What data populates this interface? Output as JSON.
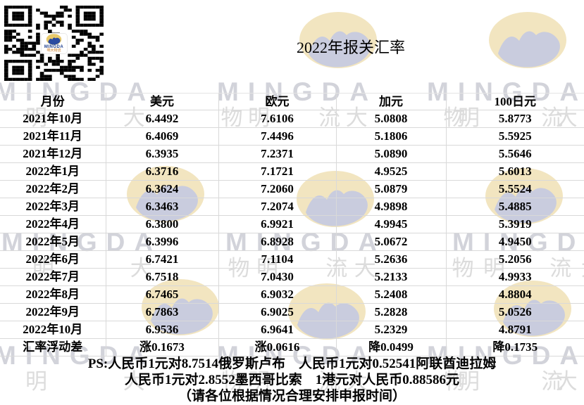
{
  "title": "2022年报关汇率",
  "watermark": {
    "brand": "MINGDA",
    "brand_cn": "明 大 物 流"
  },
  "qr": {
    "brand": "MINGDA",
    "brand_cn": "明大物流"
  },
  "table": {
    "columns": [
      "月份",
      "美元",
      "欧元",
      "加元",
      "100日元"
    ],
    "rows": [
      [
        "2021年10月",
        "6.4492",
        "7.6106",
        "5.0808",
        "5.8773"
      ],
      [
        "2021年11月",
        "6.4069",
        "7.4496",
        "5.1806",
        "5.5925"
      ],
      [
        "2021年12月",
        "6.3935",
        "7.2371",
        "5.0890",
        "5.5646"
      ],
      [
        "2022年1月",
        "6.3716",
        "7.1721",
        "4.9525",
        "5.6013"
      ],
      [
        "2022年2月",
        "6.3624",
        "7.2060",
        "5.0879",
        "5.5524"
      ],
      [
        "2022年3月",
        "6.3463",
        "7.2074",
        "4.9898",
        "5.4885"
      ],
      [
        "2022年4月",
        "6.3800",
        "6.9921",
        "4.9945",
        "5.3919"
      ],
      [
        "2022年5月",
        "6.3996",
        "6.8928",
        "5.0672",
        "4.9450"
      ],
      [
        "2022年6月",
        "6.7421",
        "7.1104",
        "5.2636",
        "5.2056"
      ],
      [
        "2022年7月",
        "6.7518",
        "7.0430",
        "5.2133",
        "4.9933"
      ],
      [
        "2022年8月",
        "6.7465",
        "6.9032",
        "5.2408",
        "4.8804"
      ],
      [
        "2022年9月",
        "6.7863",
        "6.9025",
        "5.2828",
        "5.0526"
      ],
      [
        "2022年10月",
        "6.9536",
        "6.9641",
        "5.2329",
        "4.8791"
      ]
    ],
    "summary_row": [
      "汇率浮动差",
      "涨0.1673",
      "涨0.0616",
      "降0.0499",
      "降0.1735"
    ]
  },
  "notes": [
    "PS:人民币1元对8.7514俄罗斯卢布　人民币1元对0.52541阿联酋迪拉姆",
    "人民币1元对2.8552墨西哥比索　1港元对人民币0.88586元",
    "（请各位根据情况合理安排申报时间）"
  ],
  "colors": {
    "text": "#000000",
    "table_border": "#d9d9d9",
    "watermark_yellow": "#f2e5c0",
    "watermark_blue": "#c9ccde",
    "watermark_text_en": "#d2d3da",
    "watermark_text_cn": "#dcdcdc",
    "qr_module": "#000000",
    "qr_brand_blue": "#1b3c8c",
    "qr_brand_orange": "#c8781e"
  }
}
